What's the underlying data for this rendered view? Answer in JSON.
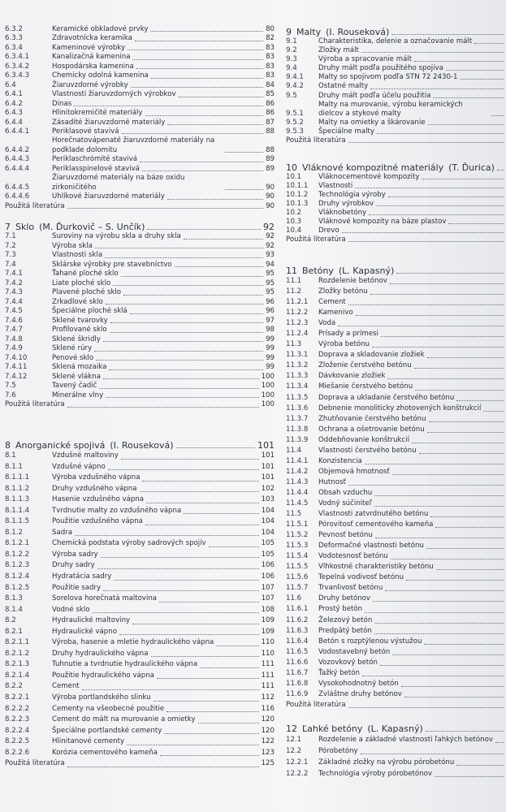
{
  "columns": [
    {
      "sections": [
        {
          "entries": [
            {
              "num": "6.3.2",
              "title": "Keramické obkladové prvky",
              "page": "80"
            },
            {
              "num": "6.3.3",
              "title": "Zdravotnícka keramika",
              "page": "82"
            },
            {
              "num": "6.3.4",
              "title": "Kameninové výrobky",
              "page": "83"
            },
            {
              "num": "6.3.4.1",
              "title": "Kanalizačná kamenina",
              "page": "83"
            },
            {
              "num": "6.3.4.2",
              "title": "Hospodárska kamenina",
              "page": "83"
            },
            {
              "num": "6.3.4.3",
              "title": "Chemicky odolná kamenina",
              "page": "83"
            },
            {
              "num": "6.4",
              "title": "Žiaruvzdorné výrobky",
              "page": "84"
            },
            {
              "num": "6.4.1",
              "title": "Vlastnosti žiaruvzdorných výrobkov",
              "page": "85"
            },
            {
              "num": "6.4.2",
              "title": "Dinas",
              "page": "86"
            },
            {
              "num": "6.4.3",
              "title": "Hlinitokremičité materiály",
              "page": "86"
            },
            {
              "num": "6.4.4",
              "title": "Zásadité žiaruvzdorné materiály",
              "page": "87"
            },
            {
              "num": "6.4.4.1",
              "title": "Periklasové stavivá",
              "page": "88"
            },
            {
              "num": "6.4.4.2",
              "title": "Horečnatovápenaté žiaruvzdorné materiály na podklade dolomitu",
              "page": "88"
            },
            {
              "num": "6.4.4.3",
              "title": "Periklaschrómité stavivá",
              "page": "89"
            },
            {
              "num": "6.4.4.4",
              "title": "Periklasspinelové stavivá",
              "page": "89"
            },
            {
              "num": "6.4.4.5",
              "title": "Žiaruvzdorné materiály na báze oxidu zirkoničitého",
              "page": "90"
            },
            {
              "num": "6.4.4.6",
              "title": "Uhlíkové žiaruvzdorné materiály",
              "page": "90"
            },
            {
              "title": "Použitá literatúra",
              "page": "90"
            }
          ]
        },
        {
          "heading": {
            "num": "7",
            "title": "Sklo",
            "author": "(M. Ďurkovič – S. Unčík)",
            "page": "92"
          },
          "entries": [
            {
              "num": "7.1",
              "title": "Suroviny na výrobu skla a druhy skla",
              "page": "92"
            },
            {
              "num": "7.2",
              "title": "Výroba skla",
              "page": "92"
            },
            {
              "num": "7.3",
              "title": "Vlastnosti skla",
              "page": "93"
            },
            {
              "num": "7.4",
              "title": "Sklárske výrobky pre stavebníctvo",
              "page": "94"
            },
            {
              "num": "7.4.1",
              "title": "Ťahané ploché sklo",
              "page": "95"
            },
            {
              "num": "7.4.2",
              "title": "Liate ploché sklo",
              "page": "95"
            },
            {
              "num": "7.4.3",
              "title": "Plavené ploché sklo",
              "page": "95"
            },
            {
              "num": "7.4.4",
              "title": "Zrkadlové sklo",
              "page": "96"
            },
            {
              "num": "7.4.5",
              "title": "Špeciálne ploché sklá",
              "page": "96"
            },
            {
              "num": "7.4.6",
              "title": "Sklené tvarovky",
              "page": "97"
            },
            {
              "num": "7.4.7",
              "title": "Profilované sklo",
              "page": "98"
            },
            {
              "num": "7.4.8",
              "title": "Sklené škridly",
              "page": "99"
            },
            {
              "num": "7.4.9",
              "title": "Sklené rúry",
              "page": "99"
            },
            {
              "num": "7.4.10",
              "title": "Penové sklo",
              "page": "99"
            },
            {
              "num": "7.4.11",
              "title": "Sklená mozaika",
              "page": "99"
            },
            {
              "num": "7.4.12",
              "title": "Sklené vlákna",
              "page": "100"
            },
            {
              "num": "7.5",
              "title": "Tavený čadič",
              "page": "100"
            },
            {
              "num": "7.6",
              "title": "Minerálne vlny",
              "page": "100"
            },
            {
              "title": "Použitá literatúra",
              "page": "100"
            }
          ]
        },
        {
          "heading": {
            "num": "8",
            "title": "Anorganické spojivá",
            "author": "(I. Rouseková)",
            "page": "101"
          },
          "entries": [
            {
              "num": "8.1",
              "title": "Vzdušné maltoviny",
              "page": "101"
            },
            {
              "num": "8.1.1",
              "title": "Vzdušné vápno",
              "page": "101"
            },
            {
              "num": "8.1.1.1",
              "title": "Výroba vzdušného vápna",
              "page": "101"
            },
            {
              "num": "8.1.1.2",
              "title": "Druhy vzdušného vápna",
              "page": "102"
            },
            {
              "num": "8.1.1.3",
              "title": "Hasenie vzdušného vápna",
              "page": "103"
            },
            {
              "num": "8.1.1.4",
              "title": "Tvrdnutie malty zo vzdušného vápna",
              "page": "104"
            },
            {
              "num": "8.1.1.5",
              "title": "Použitie vzdušného vápna",
              "page": "104"
            },
            {
              "num": "8.1.2",
              "title": "Sadra",
              "page": "104"
            },
            {
              "num": "8.1.2.1",
              "title": "Chemická podstata výroby sadrových spojív",
              "page": "105"
            },
            {
              "num": "8.1.2.2",
              "title": "Výroba sadry",
              "page": "105"
            },
            {
              "num": "8.1.2.3",
              "title": "Druhy sadry",
              "page": "106"
            },
            {
              "num": "8.1.2.4",
              "title": "Hydratácia sadry",
              "page": "106"
            },
            {
              "num": "8.1.2.5",
              "title": "Použitie sadry",
              "page": "107"
            },
            {
              "num": "8.1.3",
              "title": "Sorelova horečnatá maltovina",
              "page": "107"
            },
            {
              "num": "8.1.4",
              "title": "Vodné sklo",
              "page": "108"
            },
            {
              "num": "8.2",
              "title": "Hydraulické maltoviny",
              "page": "109"
            },
            {
              "num": "8.2.1",
              "title": "Hydraulické vápno",
              "page": "109"
            },
            {
              "num": "8.2.1.1",
              "title": "Výroba, hasenie a mletie hydraulického vápna",
              "page": "110"
            },
            {
              "num": "8.2.1.2",
              "title": "Druhy hydraulického vápna",
              "page": "110"
            },
            {
              "num": "8.2.1.3",
              "title": "Tuhnutie a tvrdnutie hydraulického vápna",
              "page": "111"
            },
            {
              "num": "8.2.1.4",
              "title": "Použitie hydraulického vápna",
              "page": "111"
            },
            {
              "num": "8.2.2",
              "title": "Cement",
              "page": "111"
            },
            {
              "num": "8.2.2.1",
              "title": "Výroba portlandského slinku",
              "page": "112"
            },
            {
              "num": "8.2.2.2",
              "title": "Cementy na všeobecné použitie",
              "page": "116"
            },
            {
              "num": "8.2.2.3",
              "title": "Cement do mált na murovanie a omietky",
              "page": "120"
            },
            {
              "num": "8.2.2.4",
              "title": "Špeciálne portlandské cementy",
              "page": "120"
            },
            {
              "num": "8.2.2.5",
              "title": "Hlinitanové cementy",
              "page": "122"
            },
            {
              "num": "8.2.2.6",
              "title": "Korózia cementového kameňa",
              "page": "123"
            },
            {
              "title": "Použitá literatúra",
              "page": "125"
            }
          ]
        }
      ]
    },
    {
      "sections": [
        {
          "heading": {
            "num": "9",
            "title": "Malty",
            "author": "(I. Rouseková)"
          },
          "entries": [
            {
              "num": "9.1",
              "title": "Charakteristika, delenie a označovanie mált"
            },
            {
              "num": "9.2",
              "title": "Zložky mált"
            },
            {
              "num": "9.3",
              "title": "Výroba a spracovanie mált"
            },
            {
              "num": "9.4",
              "title": "Druhy mált podľa použitého spojiva"
            },
            {
              "num": "9.4.1",
              "title": "Malty so spojivom podľa STN 72 2430-1"
            },
            {
              "num": "9.4.2",
              "title": "Ostatné malty"
            },
            {
              "num": "9.5",
              "title": "Druhy mált podľa účelu použitia"
            },
            {
              "num": "9.5.1",
              "title": "Malty na murovanie, výrobu keramických dielcov a stykové malty"
            },
            {
              "num": "9.5.2",
              "title": "Malty na omietky a škárovanie"
            },
            {
              "num": "9.5.3",
              "title": "Špeciálne malty"
            },
            {
              "title": "Použitá literatúra"
            }
          ]
        },
        {
          "heading": {
            "num": "10",
            "title": "Vláknové kompozitné materiály",
            "author": "(T. Ďurica)"
          },
          "entries": [
            {
              "num": "10.1",
              "title": "Vláknocementové kompozity"
            },
            {
              "num": "10.1.1",
              "title": "Vlastnosti"
            },
            {
              "num": "10.1.2",
              "title": "Technológia výroby"
            },
            {
              "num": "10.1.3",
              "title": "Druhy výrobkov"
            },
            {
              "num": "10.2",
              "title": "Vláknobetóny"
            },
            {
              "num": "10.3",
              "title": "Vláknové kompozity na báze plastov"
            },
            {
              "num": "10.4",
              "title": "Drevo"
            },
            {
              "title": "Použitá literatúra"
            }
          ]
        },
        {
          "heading": {
            "num": "11",
            "title": "Betóny",
            "author": "(L. Kapasný)"
          },
          "entries": [
            {
              "num": "11.1",
              "title": "Rozdelenie betónov"
            },
            {
              "num": "11.2",
              "title": "Zložky betónu"
            },
            {
              "num": "11.2.1",
              "title": "Cement"
            },
            {
              "num": "11.2.2",
              "title": "Kamenivo"
            },
            {
              "num": "11.2.3",
              "title": "Voda"
            },
            {
              "num": "11.2.4",
              "title": "Prísady a prímesi"
            },
            {
              "num": "11.3",
              "title": "Výroba betónu"
            },
            {
              "num": "11.3.1",
              "title": "Doprava a skladovanie zložiek"
            },
            {
              "num": "11.3.2",
              "title": "Zloženie čerstvého betónu"
            },
            {
              "num": "11.3.3",
              "title": "Dávkovanie zložiek"
            },
            {
              "num": "11.3.4",
              "title": "Miešanie čerstvého betónu"
            },
            {
              "num": "11.3.5",
              "title": "Doprava a ukladanie čerstvého betónu"
            },
            {
              "num": "11.3.6",
              "title": "Debnenie monoliticky zhotovených konštrukcií"
            },
            {
              "num": "11.3.7",
              "title": "Zhutňovanie čerstvého betónu"
            },
            {
              "num": "11.3.8",
              "title": "Ochrana a ošetrovanie betónu"
            },
            {
              "num": "11.3.9",
              "title": "Oddebňovanie konštrukcií"
            },
            {
              "num": "11.4",
              "title": "Vlastnosti čerstvého betónu"
            },
            {
              "num": "11.4.1",
              "title": "Konzistencia"
            },
            {
              "num": "11.4.2",
              "title": "Objemová hmotnosť"
            },
            {
              "num": "11.4.3",
              "title": "Hutnosť"
            },
            {
              "num": "11.4.4",
              "title": "Obsah vzduchu"
            },
            {
              "num": "11.4.5",
              "title": "Vodný súčiniteľ"
            },
            {
              "num": "11.5",
              "title": "Vlastnosti zatvrdnutého betónu"
            },
            {
              "num": "11.5.1",
              "title": "Pórovitosť cementového kameňa"
            },
            {
              "num": "11.5.2",
              "title": "Pevnosť betónu"
            },
            {
              "num": "11.5.3",
              "title": "Deformačné vlastnosti betónu"
            },
            {
              "num": "11.5.4",
              "title": "Vodotesnosť betónu"
            },
            {
              "num": "11.5.5",
              "title": "Vlhkostné charakteristiky betónu"
            },
            {
              "num": "11.5.6",
              "title": "Tepelná vodivosť betónu"
            },
            {
              "num": "11.5.7",
              "title": "Trvanlivosť betónu"
            },
            {
              "num": "11.6",
              "title": "Druhy betónov"
            },
            {
              "num": "11.6.1",
              "title": "Prostý betón"
            },
            {
              "num": "11.6.2",
              "title": "Železový betón"
            },
            {
              "num": "11.6.3",
              "title": "Predpätý betón"
            },
            {
              "num": "11.6.4",
              "title": "Betón s rozptýlenou výstužou"
            },
            {
              "num": "11.6.5",
              "title": "Vodostavebný betón"
            },
            {
              "num": "11.6.6",
              "title": "Vozovkový betón"
            },
            {
              "num": "11.6.7",
              "title": "Ťažký betón"
            },
            {
              "num": "11.6.8",
              "title": "Vysokohodnotný betón"
            },
            {
              "num": "11.6.9",
              "title": "Zvláštne druhy betónov"
            },
            {
              "title": "Použitá literatúra"
            }
          ]
        },
        {
          "heading": {
            "num": "12",
            "title": "Ľahké betóny",
            "author": "(L. Kapasný)"
          },
          "entries": [
            {
              "num": "12.1",
              "title": "Rozdelenie a základné vlastnosti ľahkých betónov"
            },
            {
              "num": "12.2",
              "title": "Pórobetóny"
            },
            {
              "num": "12.2.1",
              "title": "Základné zložky na výrobu pórobetónu"
            },
            {
              "num": "12.2.2",
              "title": "Technológia výroby pórobetónov"
            }
          ]
        }
      ]
    }
  ]
}
